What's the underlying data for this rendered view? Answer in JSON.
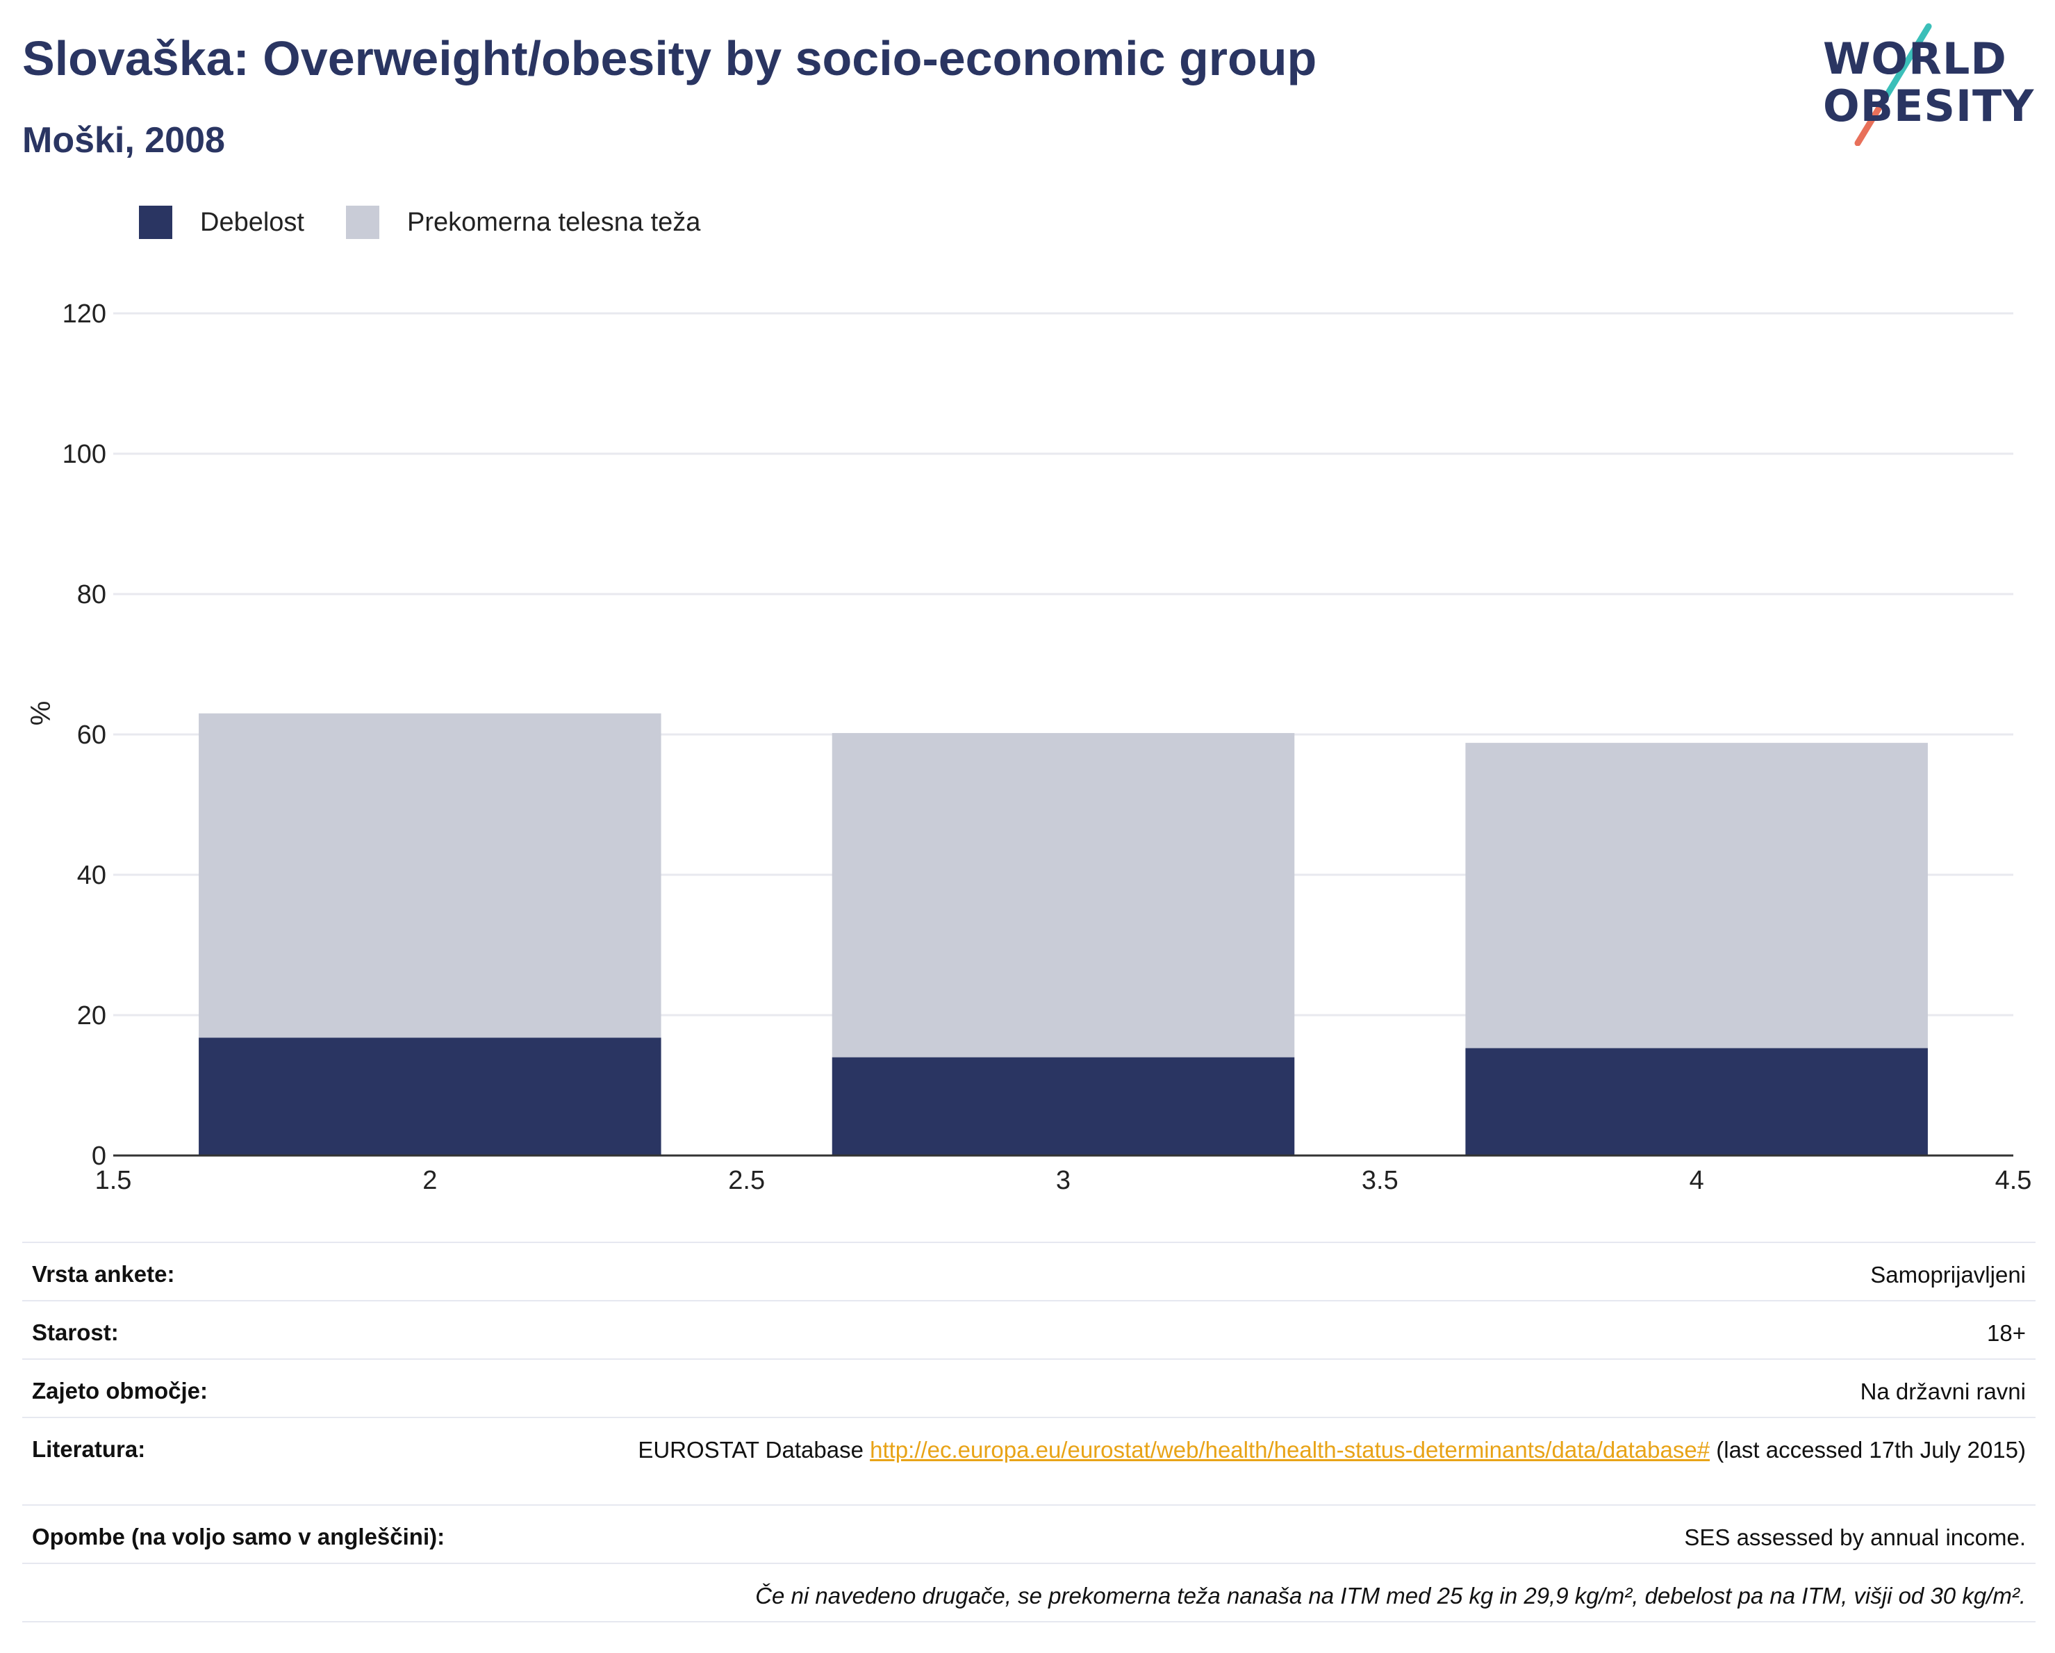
{
  "header": {
    "title": "Slovaška: Overweight/obesity by socio-economic group",
    "subtitle": "Moški, 2008"
  },
  "logo": {
    "line1": "WORLD",
    "line2": "OBESITY",
    "colors": {
      "teal": "#3bbfb9",
      "coral": "#e8705a",
      "navy": "#2a3562"
    }
  },
  "legend": {
    "items": [
      {
        "label": "Debelost",
        "color": "#2a3562"
      },
      {
        "label": "Prekomerna telesna teža",
        "color": "#c9ccd7"
      }
    ]
  },
  "chart_data": {
    "type": "bar",
    "stacked": true,
    "x": [
      2,
      3,
      4
    ],
    "bar_width": 0.73,
    "series": [
      {
        "name": "Debelost",
        "color": "#2a3562",
        "values": [
          16.8,
          14.0,
          15.3
        ]
      },
      {
        "name": "Prekomerna telesna teža",
        "color": "#c9ccd7",
        "values": [
          46.2,
          46.2,
          43.5
        ]
      }
    ],
    "xlim": [
      1.5,
      4.5
    ],
    "ylim": [
      0,
      130
    ],
    "xticks": [
      "1.5",
      "2",
      "2.5",
      "3",
      "3.5",
      "4",
      "4.5"
    ],
    "xtick_values": [
      1.5,
      2,
      2.5,
      3,
      3.5,
      4,
      4.5
    ],
    "yticks": [
      "0",
      "20",
      "40",
      "60",
      "80",
      "100",
      "120"
    ],
    "ytick_values": [
      0,
      20,
      40,
      60,
      80,
      100,
      120
    ],
    "ylabel": "%",
    "grid": true,
    "legend": "top-left"
  },
  "info": {
    "survey_label": "Vrsta ankete:",
    "survey_value": "Samoprijavljeni",
    "age_label": "Starost:",
    "age_value": "18+",
    "coverage_label": "Zajeto območje:",
    "coverage_value": "Na državni ravni",
    "lit_label": "Literatura:",
    "lit_prefix": "EUROSTAT Database ",
    "lit_link": "http://ec.europa.eu/eurostat/web/health/health-status-determinants/data/database#",
    "lit_suffix": " (last accessed 17th July 2015)",
    "notes_label": "Opombe (na voljo samo v angleščini):",
    "notes_value": "SES assessed by annual income.",
    "footnote": "Če ni navedeno drugače, se prekomerna teža nanaša na ITM med 25 kg in 29,9 kg/m², debelost pa na ITM, višji od 30 kg/m²."
  }
}
